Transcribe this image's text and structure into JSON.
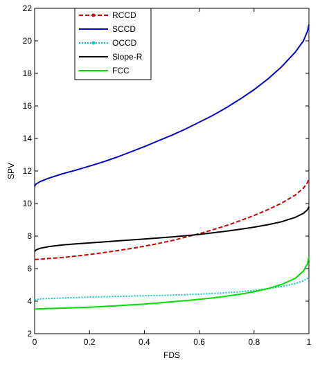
{
  "chart_data": {
    "type": "line",
    "title": "",
    "xlabel": "FDS",
    "ylabel": "SPV",
    "xlim": [
      0,
      1
    ],
    "ylim": [
      2,
      22
    ],
    "xticks": [
      0,
      0.2,
      0.4,
      0.6,
      0.8,
      1
    ],
    "xtick_labels": [
      "0",
      "0.2",
      "0.4",
      "0.6",
      "0.8",
      "1"
    ],
    "yticks": [
      2,
      4,
      6,
      8,
      10,
      12,
      14,
      16,
      18,
      20,
      22
    ],
    "ytick_labels": [
      "2",
      "4",
      "6",
      "8",
      "10",
      "12",
      "14",
      "16",
      "18",
      "20",
      "22"
    ],
    "grid": false,
    "legend_position": "top-left",
    "x": [
      0,
      0.005,
      0.02,
      0.05,
      0.1,
      0.15,
      0.2,
      0.25,
      0.3,
      0.35,
      0.4,
      0.45,
      0.5,
      0.55,
      0.6,
      0.65,
      0.7,
      0.75,
      0.8,
      0.85,
      0.9,
      0.95,
      0.98,
      0.995,
      1
    ],
    "series": [
      {
        "name": "RCCD",
        "color": "#cc0000",
        "line_style": "dashed",
        "marker": "dot",
        "values": [
          6.55,
          6.56,
          6.58,
          6.62,
          6.68,
          6.77,
          6.87,
          6.98,
          7.1,
          7.23,
          7.38,
          7.54,
          7.72,
          7.93,
          8.15,
          8.39,
          8.65,
          8.95,
          9.27,
          9.62,
          10.02,
          10.52,
          10.95,
          11.3,
          11.55
        ]
      },
      {
        "name": "SCCD",
        "color": "#0000cc",
        "line_style": "solid",
        "marker": "none",
        "values": [
          11.05,
          11.2,
          11.35,
          11.55,
          11.82,
          12.05,
          12.3,
          12.56,
          12.85,
          13.17,
          13.5,
          13.85,
          14.2,
          14.58,
          15.0,
          15.42,
          15.9,
          16.43,
          17.0,
          17.65,
          18.4,
          19.3,
          20.0,
          20.6,
          21.0
        ]
      },
      {
        "name": "OCCD",
        "color": "#00cccc",
        "line_style": "dotted",
        "marker": "dot",
        "values": [
          4.05,
          4.1,
          4.13,
          4.16,
          4.19,
          4.22,
          4.25,
          4.27,
          4.29,
          4.31,
          4.33,
          4.35,
          4.37,
          4.4,
          4.43,
          4.47,
          4.52,
          4.58,
          4.66,
          4.77,
          4.9,
          5.08,
          5.25,
          5.4,
          5.5
        ]
      },
      {
        "name": "Slope-R",
        "color": "#000000",
        "line_style": "solid",
        "marker": "none",
        "values": [
          7.05,
          7.15,
          7.25,
          7.35,
          7.45,
          7.52,
          7.58,
          7.64,
          7.7,
          7.76,
          7.82,
          7.88,
          7.95,
          8.02,
          8.1,
          8.2,
          8.3,
          8.42,
          8.55,
          8.7,
          8.88,
          9.15,
          9.4,
          9.62,
          9.8
        ]
      },
      {
        "name": "FCC",
        "color": "#00dd00",
        "line_style": "solid",
        "marker": "none",
        "values": [
          3.5,
          3.52,
          3.53,
          3.55,
          3.57,
          3.6,
          3.63,
          3.67,
          3.72,
          3.77,
          3.82,
          3.89,
          3.96,
          4.03,
          4.11,
          4.2,
          4.31,
          4.43,
          4.58,
          4.77,
          5.02,
          5.4,
          5.85,
          6.3,
          6.75
        ]
      }
    ]
  }
}
